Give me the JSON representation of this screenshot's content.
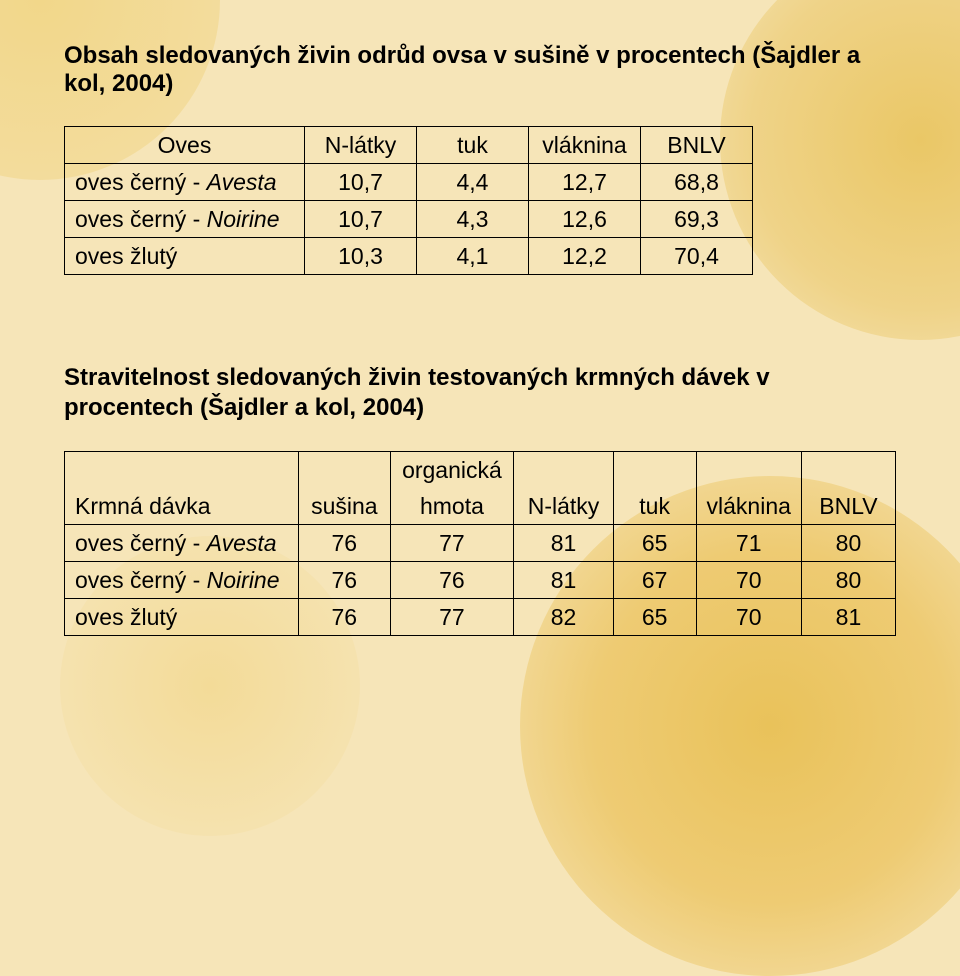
{
  "heading1": "Obsah sledovaných živin odrůd ovsa v sušině v procentech (Šajdler a kol, 2004)",
  "table1": {
    "type": "table",
    "columns": [
      "Oves",
      "N-látky",
      "tuk",
      "vláknina",
      "BNLV"
    ],
    "rows": [
      {
        "label_prefix": "oves černý - ",
        "label_italic": "Avesta",
        "values": [
          "10,7",
          "4,4",
          "12,7",
          "68,8"
        ]
      },
      {
        "label_prefix": "oves černý - ",
        "label_italic": "Noirine",
        "values": [
          "10,7",
          "4,3",
          "12,6",
          "69,3"
        ]
      },
      {
        "label_prefix": "oves žlutý",
        "label_italic": "",
        "values": [
          "10,3",
          "4,1",
          "12,2",
          "70,4"
        ]
      }
    ],
    "border_color": "#000000",
    "background_color": "transparent",
    "font_size": 23,
    "cell_padding": "5px 10px"
  },
  "heading2": "Stravitelnost sledovaných živin testovaných krmných dávek v procentech (Šajdler a kol, 2004)",
  "table2": {
    "type": "table",
    "header_row1": [
      "",
      "",
      "organická",
      "",
      "",
      "",
      ""
    ],
    "columns": [
      "Krmná dávka",
      "sušina",
      "hmota",
      "N-látky",
      "tuk",
      "vláknina",
      "BNLV"
    ],
    "rows": [
      {
        "label_prefix": "oves černý - ",
        "label_italic": "Avesta",
        "values": [
          "76",
          "77",
          "81",
          "65",
          "71",
          "80"
        ]
      },
      {
        "label_prefix": "oves černý - ",
        "label_italic": "Noirine",
        "values": [
          "76",
          "76",
          "81",
          "67",
          "70",
          "80"
        ]
      },
      {
        "label_prefix": "oves žlutý",
        "label_italic": "",
        "values": [
          "76",
          "77",
          "82",
          "65",
          "70",
          "81"
        ]
      }
    ],
    "border_color": "#000000",
    "background_color": "transparent",
    "font_size": 23,
    "cell_padding": "5px 10px"
  },
  "colors": {
    "page_bg": "#f6e5b8",
    "text": "#000000",
    "accent_light": "#f3db98",
    "accent_dark": "#e9c25a"
  }
}
